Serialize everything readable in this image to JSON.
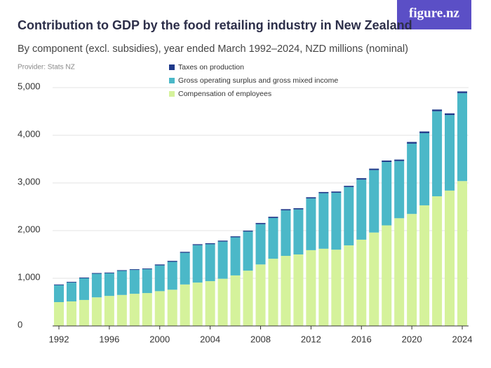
{
  "brand": "figure.nz",
  "chart_data": {
    "type": "bar",
    "stacked": true,
    "title": "Contribution to GDP by the food retailing industry in New Zealand",
    "subtitle": "By component (excl. subsidies), year ended March 1992–2024, NZD millions (nominal)",
    "provider": "Provider: Stats NZ",
    "categories": [
      "1992",
      null,
      null,
      null,
      "1996",
      null,
      null,
      null,
      "2000",
      null,
      null,
      null,
      "2004",
      null,
      null,
      null,
      "2008",
      null,
      null,
      null,
      "2012",
      null,
      null,
      null,
      "2016",
      null,
      null,
      null,
      "2020",
      null,
      null,
      null,
      "2024"
    ],
    "series": [
      {
        "name": "Compensation of employees",
        "color": "#d5f29b",
        "values": [
          500,
          515,
          545,
          600,
          630,
          650,
          675,
          690,
          730,
          760,
          870,
          910,
          940,
          990,
          1060,
          1160,
          1290,
          1410,
          1470,
          1500,
          1590,
          1620,
          1600,
          1690,
          1810,
          1960,
          2110,
          2260,
          2350,
          2530,
          2720,
          2840,
          3040
        ]
      },
      {
        "name": "Gross operating surplus and gross mixed income",
        "color": "#4bb8c8",
        "values": [
          355,
          395,
          455,
          495,
          475,
          505,
          500,
          500,
          540,
          585,
          665,
          785,
          775,
          780,
          800,
          820,
          845,
          855,
          955,
          945,
          1085,
          1165,
          1195,
          1225,
          1260,
          1310,
          1330,
          1200,
          1475,
          1515,
          1785,
          1585,
          1845
        ]
      },
      {
        "name": "Taxes on production",
        "color": "#1f3a8a",
        "values": [
          15,
          15,
          15,
          15,
          15,
          15,
          15,
          15,
          20,
          20,
          20,
          20,
          20,
          20,
          20,
          20,
          25,
          25,
          25,
          25,
          25,
          25,
          25,
          25,
          30,
          30,
          30,
          30,
          35,
          35,
          35,
          35,
          35
        ]
      }
    ],
    "ylim": [
      0,
      5000
    ],
    "yticks": [
      0,
      {
        "value": 1000,
        "label": "1,000"
      },
      {
        "value": 2000,
        "label": "2,000"
      },
      {
        "value": 3000,
        "label": "3,000"
      },
      {
        "value": 4000,
        "label": "4,000"
      },
      {
        "value": 5000,
        "label": "5,000"
      }
    ],
    "grid": true
  }
}
